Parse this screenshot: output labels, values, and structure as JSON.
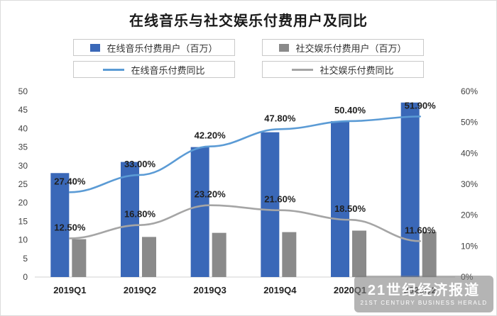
{
  "title": "在线音乐与社交娱乐付费用户及同比",
  "legend": [
    {
      "label": "在线音乐付费用户（百万）",
      "type": "bar",
      "color": "#3A68B8"
    },
    {
      "label": "社交娱乐付费用户（百万）",
      "type": "bar",
      "color": "#8A8A8A"
    },
    {
      "label": "在线音乐付费同比",
      "type": "line",
      "color": "#5B9BD5"
    },
    {
      "label": "社交娱乐付费同比",
      "type": "line",
      "color": "#A5A5A5"
    }
  ],
  "chart_data": {
    "type": "bar-line-combo",
    "title": "在线音乐与社交娱乐付费用户及同比",
    "categories": [
      "2019Q1",
      "2019Q2",
      "2019Q3",
      "2019Q4",
      "2020Q1",
      "2020Q2"
    ],
    "bar_series": [
      {
        "name": "在线音乐付费用户（百万）",
        "axis": "left",
        "color": "#3A68B8",
        "values": [
          28.0,
          31.0,
          35.0,
          39.0,
          42.0,
          47.0
        ]
      },
      {
        "name": "社交娱乐付费用户（百万）",
        "axis": "left",
        "color": "#8A8A8A",
        "values": [
          10.2,
          10.8,
          11.9,
          12.1,
          12.5,
          12.2
        ]
      }
    ],
    "line_series": [
      {
        "name": "在线音乐付费同比",
        "axis": "right",
        "color": "#5B9BD5",
        "values": [
          27.4,
          33.0,
          42.2,
          47.8,
          50.4,
          51.9
        ],
        "labels": [
          "27.40%",
          "33.00%",
          "42.20%",
          "47.80%",
          "50.40%",
          "51.90%"
        ]
      },
      {
        "name": "社交娱乐付费同比",
        "axis": "right",
        "color": "#A5A5A5",
        "values": [
          12.5,
          16.8,
          23.2,
          21.6,
          18.5,
          11.6
        ],
        "labels": [
          "12.50%",
          "16.80%",
          "23.20%",
          "21.60%",
          "18.50%",
          "11.60%"
        ]
      }
    ],
    "left_axis": {
      "min": 0,
      "max": 50,
      "step": 5,
      "ticks": [
        "0",
        "5",
        "10",
        "15",
        "20",
        "25",
        "30",
        "35",
        "40",
        "45",
        "50"
      ]
    },
    "right_axis": {
      "min": 0,
      "max": 60,
      "step": 10,
      "ticks": [
        "0%",
        "10%",
        "20%",
        "30%",
        "40%",
        "50%",
        "60%"
      ]
    },
    "grid": false,
    "legend_position": "top"
  },
  "watermark": {
    "line1": "21世纪经济报道",
    "line2": "21ST CENTURY BUSINESS HERALD"
  }
}
